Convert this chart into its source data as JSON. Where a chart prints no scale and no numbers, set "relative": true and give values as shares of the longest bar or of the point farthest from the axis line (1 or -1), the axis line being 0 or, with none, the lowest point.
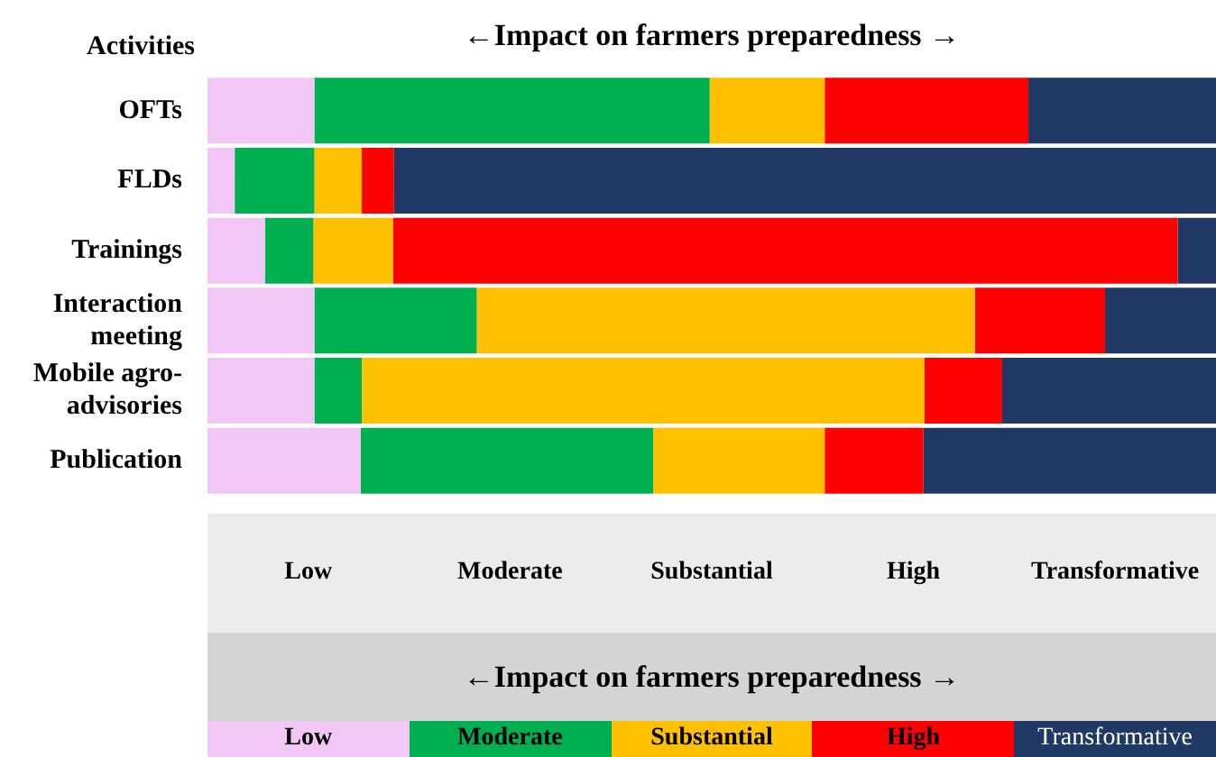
{
  "chart_data": {
    "type": "bar",
    "orientation": "horizontal",
    "stacked": true,
    "relative": true,
    "title": "←Impact on farmers preparedness →",
    "ylabel": "Activities",
    "annotations": [
      "Low",
      "Moderate",
      "Substantial",
      "High",
      "Transformative",
      "←Impact on farmers preparedness →"
    ],
    "legend": "bottom",
    "categories": [
      "OFTs",
      "FLDs",
      "Trainings",
      "Interaction meeting",
      "Mobile agro-advisories",
      "Publication"
    ],
    "series": [
      {
        "name": "Low",
        "color": "#f2c6f5",
        "values": [
          0.106,
          0.027,
          0.057,
          0.106,
          0.106,
          0.152
        ]
      },
      {
        "name": "Moderate",
        "color": "#00b050",
        "values": [
          0.392,
          0.079,
          0.048,
          0.161,
          0.047,
          0.29
        ]
      },
      {
        "name": "Substantial",
        "color": "#ffc000",
        "values": [
          0.114,
          0.047,
          0.079,
          0.494,
          0.558,
          0.17
        ]
      },
      {
        "name": "High",
        "color": "#ff0000",
        "values": [
          0.202,
          0.032,
          0.778,
          0.129,
          0.077,
          0.098
        ]
      },
      {
        "name": "Transformative",
        "color": "#1f3864",
        "values": [
          0.186,
          0.815,
          0.038,
          0.11,
          0.212,
          0.29
        ]
      }
    ]
  }
}
